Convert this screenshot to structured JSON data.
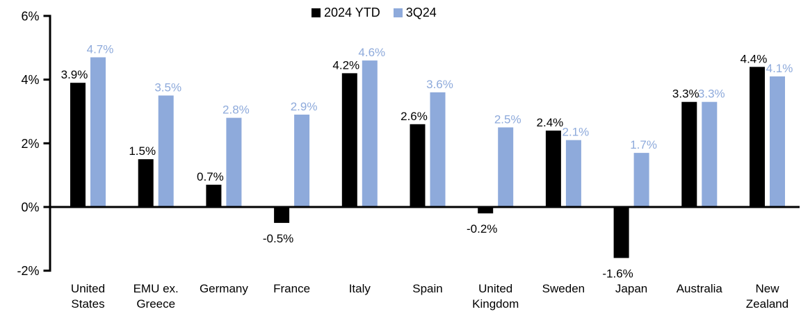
{
  "chart_data": {
    "type": "bar",
    "title": "",
    "categories": [
      "United States",
      "EMU ex. Greece",
      "Germany",
      "France",
      "Italy",
      "Spain",
      "United Kingdom",
      "Sweden",
      "Japan",
      "Australia",
      "New Zealand"
    ],
    "category_label_lines": [
      [
        "United",
        "States"
      ],
      [
        "EMU ex.",
        "Greece"
      ],
      [
        "Germany"
      ],
      [
        "France"
      ],
      [
        "Italy"
      ],
      [
        "Spain"
      ],
      [
        "United",
        "Kingdom"
      ],
      [
        "Sweden"
      ],
      [
        "Japan"
      ],
      [
        "Australia"
      ],
      [
        "New",
        "Zealand"
      ]
    ],
    "series": [
      {
        "name": "2024 YTD",
        "color": "#000000",
        "values": [
          3.9,
          1.5,
          0.7,
          -0.5,
          4.2,
          2.6,
          -0.2,
          2.4,
          -1.6,
          3.3,
          4.4
        ],
        "labels": [
          "3.9%",
          "1.5%",
          "0.7%",
          "-0.5%",
          "4.2%",
          "2.6%",
          "-0.2%",
          "2.4%",
          "-1.6%",
          "3.3%",
          "4.4%"
        ]
      },
      {
        "name": "3Q24",
        "color": "#8EAADB",
        "values": [
          4.7,
          3.5,
          2.8,
          2.9,
          4.6,
          3.6,
          2.5,
          2.1,
          1.7,
          3.3,
          4.1
        ],
        "labels": [
          "4.7%",
          "3.5%",
          "2.8%",
          "2.9%",
          "4.6%",
          "3.6%",
          "2.5%",
          "2.1%",
          "1.7%",
          "3.3%",
          "4.1%"
        ]
      }
    ],
    "xlabel": "",
    "ylabel": "",
    "ylim": [
      -2,
      6
    ],
    "yticks": [
      {
        "value": 6,
        "label": "6%"
      },
      {
        "value": 4,
        "label": "4%"
      },
      {
        "value": 2,
        "label": "2%"
      },
      {
        "value": 0,
        "label": "0%"
      },
      {
        "value": -2,
        "label": "-2%"
      }
    ],
    "grid": false,
    "legend_position": "top-center",
    "axis_color": "#000000",
    "background_color": "#FFFFFF"
  }
}
